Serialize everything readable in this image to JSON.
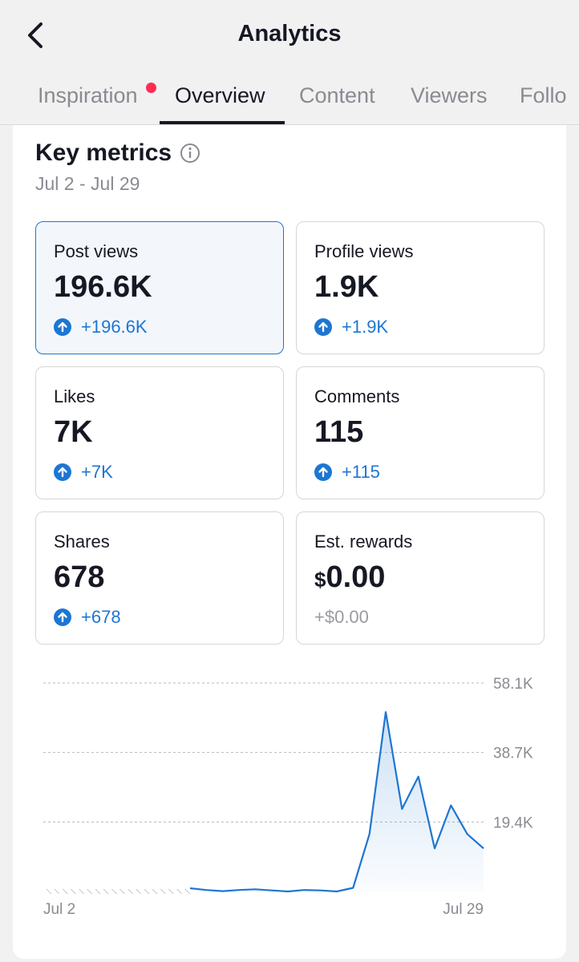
{
  "header": {
    "title": "Analytics"
  },
  "tabs": [
    {
      "label": "Inspiration",
      "has_badge": true
    },
    {
      "label": "Overview",
      "active": true
    },
    {
      "label": "Content"
    },
    {
      "label": "Viewers"
    },
    {
      "label": "Follo"
    }
  ],
  "key_metrics": {
    "title": "Key metrics",
    "date_range": "Jul 2 - Jul 29",
    "cards": [
      {
        "label": "Post views",
        "value": "196.6K",
        "change": "+196.6K",
        "selected": true
      },
      {
        "label": "Profile views",
        "value": "1.9K",
        "change": "+1.9K"
      },
      {
        "label": "Likes",
        "value": "7K",
        "change": "+7K"
      },
      {
        "label": "Comments",
        "value": "115",
        "change": "+115"
      },
      {
        "label": "Shares",
        "value": "678",
        "change": "+678"
      },
      {
        "label": "Est. rewards",
        "value_currency": "$",
        "value": "0.00",
        "change": "+$0.00"
      }
    ]
  },
  "chart_data": {
    "type": "area",
    "x_labels": [
      "Jul 2",
      "Jul 29"
    ],
    "y_ticks": [
      "58.1K",
      "38.7K",
      "19.4K"
    ],
    "ylim": [
      0,
      58100
    ],
    "grid": true,
    "series": [
      {
        "values": [
          null,
          null,
          null,
          null,
          null,
          null,
          null,
          null,
          null,
          900,
          400,
          100,
          400,
          600,
          300,
          0,
          400,
          300,
          0,
          1000,
          16000,
          50000,
          23000,
          32000,
          12000,
          24000,
          16000,
          12000
        ]
      }
    ]
  },
  "colors": {
    "accent": "#1d76d2",
    "notif": "#fe2c55"
  }
}
